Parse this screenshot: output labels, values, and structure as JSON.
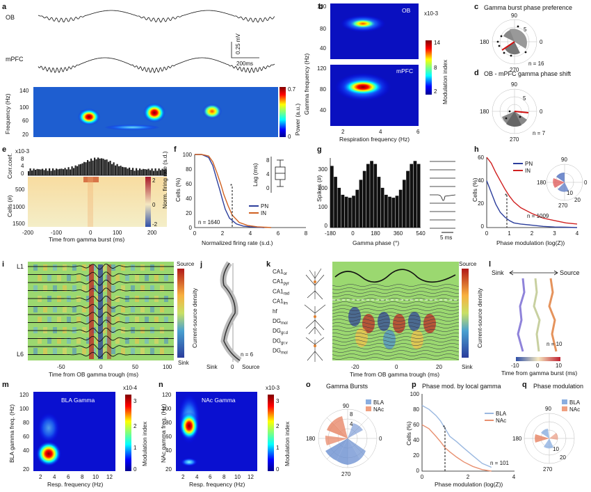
{
  "panels": {
    "a": "a",
    "b": "b",
    "c": "c",
    "d": "d",
    "e": "e",
    "f": "f",
    "g": "g",
    "h": "h",
    "i": "i",
    "j": "j",
    "k": "k",
    "l": "l",
    "m": "m",
    "n": "n",
    "o": "o",
    "p": "p",
    "q": "q"
  },
  "a": {
    "ob": "OB",
    "mpfc": "mPFC",
    "scale_v": "0.25 mV",
    "scale_t": "200ms",
    "ylabel": "Frequency (Hz)",
    "yticks": [
      "140",
      "100",
      "60",
      "20"
    ],
    "cbar": [
      "0.7",
      "0"
    ],
    "cbar_label": "Power (a.u.)"
  },
  "b": {
    "top": "OB",
    "bottom": "mPFC",
    "ylabel": "Gamma frequency (Hz)",
    "yticks_top": [
      "120",
      "80",
      "40"
    ],
    "yticks_bot": [
      "120",
      "80",
      "40"
    ],
    "xticks": [
      "2",
      "4",
      "6"
    ],
    "xlabel": "Respiration frequency (Hz)",
    "cbar_exp": "x10-3",
    "cbar": [
      "14",
      "8",
      "2"
    ],
    "cbar_label": "Modulation index"
  },
  "c": {
    "title": "Gamma burst phase preference",
    "a90": "90",
    "a180": "180",
    "a0": "0",
    "a270": "270",
    "r": "5",
    "n": "n = 16"
  },
  "d": {
    "title": "OB - mPFC gamma phase shift",
    "a90": "90",
    "a180": "180",
    "a0": "0",
    "a270": "270",
    "r": "5",
    "n": "n = 7"
  },
  "e": {
    "exp": "x10-3",
    "ylabel_top": "Corr.coef.",
    "yticks_top": [
      "8",
      "4",
      "0"
    ],
    "ylabel": "Cells (#)",
    "yticks": [
      "500",
      "1000",
      "1500"
    ],
    "xticks": [
      "-200",
      "-100",
      "0",
      "100",
      "200"
    ],
    "xlabel": "Time from gamma burst (ms)",
    "cbar": [
      "2",
      "0",
      "-2"
    ],
    "cbar_label": "Norm. firing rate (s.d.)"
  },
  "f": {
    "ylabel": "Cells (%)",
    "yticks": [
      "100",
      "80",
      "60",
      "40",
      "20",
      "0"
    ],
    "xticks": [
      "0",
      "2",
      "4",
      "6",
      "8"
    ],
    "xlabel": "Normalized firing rate (s.d.)",
    "n": "n = 1640",
    "pn": "PN",
    "in": "IN",
    "star": "*",
    "inset_ylabel": "Lag (ms)",
    "inset_ticks": [
      "8",
      "4",
      "0"
    ]
  },
  "g": {
    "ylabel": "Spikes (#)",
    "yticks": [
      "300",
      "200",
      "100",
      "0"
    ],
    "xticks": [
      "-180",
      "0",
      "180",
      "360",
      "540"
    ],
    "xlabel": "Gamma phase (°)",
    "scale": "5 ms"
  },
  "h": {
    "ylabel": "Cells (%)",
    "yticks": [
      "60",
      "40",
      "20",
      "0"
    ],
    "xticks": [
      "0",
      "1",
      "2",
      "3",
      "4"
    ],
    "xlabel": "Phase modulation (log(Z))",
    "pn": "PN",
    "in": "IN",
    "n": "n = 1009",
    "star": "*",
    "polar": [
      "90",
      "180",
      "0",
      "270",
      "10",
      "20"
    ]
  },
  "i": {
    "top": "L1",
    "bottom": "L6",
    "xticks": [
      "-50",
      "0",
      "50",
      "100"
    ],
    "xlabel": "Time from OB gamma trough (ms)",
    "source": "Source",
    "sink": "Sink",
    "cbar_label": "Current-source density"
  },
  "j": {
    "sink": "Sink",
    "zero": "0",
    "source": "Source",
    "n": "n = 6"
  },
  "k": {
    "layers": [
      {
        "b": "CA1",
        "s": "or"
      },
      {
        "b": "CA1",
        "s": "pyr"
      },
      {
        "b": "CA1",
        "s": "rad"
      },
      {
        "b": "CA1",
        "s": "lm"
      },
      {
        "b": "hf",
        "s": ""
      },
      {
        "b": "DG",
        "s": "mol"
      },
      {
        "b": "DG",
        "s": "gr.d"
      },
      {
        "b": "DG",
        "s": "gr.v"
      },
      {
        "b": "DG",
        "s": "mol"
      }
    ],
    "xticks": [
      "-20",
      "0",
      "20"
    ],
    "xlabel": "Time from OB gamma trough (ms)",
    "source": "Source",
    "sink": "Sink",
    "cbar_label": "Current-source density"
  },
  "l": {
    "sink": "Sink",
    "source": "Source",
    "n": "n = 10",
    "xticks": [
      "-10",
      "0",
      "10"
    ],
    "xlabel": "Time from gamma burst (ms)"
  },
  "m": {
    "title": "BLA Gamma",
    "ylabel": "BLA gamma freq. (Hz)",
    "yticks": [
      "120",
      "100",
      "80",
      "60",
      "40",
      "20"
    ],
    "xticks": [
      "2",
      "4",
      "6",
      "8",
      "10",
      "12"
    ],
    "xlabel": "Resp. frequency (Hz)",
    "cbar_exp": "x10-4",
    "cbar": [
      "3",
      "2",
      "1",
      "0"
    ],
    "cbar_label": "Modulation index"
  },
  "n": {
    "title": "NAc Gamma",
    "ylabel": "NAc gamma freq. (Hz)",
    "yticks": [
      "120",
      "100",
      "80",
      "60",
      "40",
      "20"
    ],
    "xticks": [
      "2",
      "4",
      "6",
      "8",
      "10",
      "12"
    ],
    "xlabel": "Resp. frequency (Hz)",
    "cbar_exp": "x10-3",
    "cbar": [
      "3",
      "2",
      "1",
      "0"
    ],
    "cbar_label": "Modulation index"
  },
  "o": {
    "title": "Gamma Bursts",
    "bla": "BLA",
    "nac": "NAc",
    "a90": "90",
    "a180": "180",
    "a0": "0",
    "a270": "270",
    "r1": "4",
    "r2": "8"
  },
  "p": {
    "title": "Phase mod. by local gamma",
    "ylabel": "Cells (%)",
    "yticks": [
      "100",
      "80",
      "60",
      "40",
      "20",
      "0"
    ],
    "xticks": [
      "0",
      "2",
      "4"
    ],
    "xlabel": "Phase modulation (log(Z))",
    "bla": "BLA",
    "nac": "NAc",
    "n": "n = 101",
    "star": "*"
  },
  "q": {
    "title": "Phase modulation",
    "bla": "BLA",
    "nac": "NAc",
    "a90": "90",
    "a180": "180",
    "a270": "270",
    "r1": "10",
    "r2": "20"
  },
  "chart_data": [
    {
      "panel": "f",
      "type": "line",
      "title": "",
      "xlabel": "Normalized firing rate (s.d.)",
      "ylabel": "Cells (%)",
      "xlim": [
        0,
        8
      ],
      "ylim": [
        0,
        100
      ],
      "series": [
        {
          "name": "PN",
          "x": [
            0,
            0.5,
            1,
            1.3,
            1.6,
            1.8,
            2,
            2.2,
            2.5,
            3,
            3.5,
            4,
            5
          ],
          "y": [
            100,
            100,
            96,
            85,
            65,
            52,
            38,
            25,
            13,
            5,
            2,
            1,
            0
          ]
        },
        {
          "name": "IN",
          "x": [
            0,
            0.5,
            1,
            1.3,
            1.6,
            1.9,
            2.1,
            2.4,
            2.7,
            3.2,
            3.8,
            4.5,
            5.5
          ],
          "y": [
            100,
            100,
            98,
            90,
            75,
            58,
            45,
            30,
            17,
            7,
            3,
            1,
            0
          ]
        }
      ]
    },
    {
      "panel": "g",
      "type": "bar",
      "title": "",
      "xlabel": "Gamma phase (°)",
      "ylabel": "Spikes (#)",
      "xlim": [
        -180,
        540
      ],
      "ylim": [
        0,
        350
      ],
      "x": [
        -180,
        -150,
        -120,
        -90,
        -60,
        -30,
        0,
        30,
        60,
        90,
        120,
        150,
        180,
        210,
        240,
        270,
        300,
        330,
        360,
        390,
        420,
        450,
        480,
        510,
        540
      ],
      "values": [
        310,
        255,
        200,
        165,
        155,
        150,
        160,
        190,
        240,
        285,
        320,
        335,
        320,
        255,
        200,
        165,
        155,
        150,
        160,
        190,
        240,
        285,
        320,
        335,
        320
      ]
    },
    {
      "panel": "h",
      "type": "line",
      "title": "",
      "xlabel": "Phase modulation (log(Z))",
      "ylabel": "Cells (%)",
      "xlim": [
        0,
        4
      ],
      "ylim": [
        0,
        60
      ],
      "series": [
        {
          "name": "PN",
          "x": [
            0,
            0.2,
            0.4,
            0.6,
            0.8,
            1,
            1.2,
            1.5,
            2,
            2.5,
            3,
            3.5,
            4
          ],
          "y": [
            40,
            30,
            20,
            13,
            9,
            6,
            4,
            3,
            2,
            1,
            0.5,
            0.3,
            0
          ]
        },
        {
          "name": "IN",
          "x": [
            0,
            0.2,
            0.4,
            0.6,
            0.8,
            1,
            1.2,
            1.5,
            2,
            2.5,
            3,
            3.5,
            4
          ],
          "y": [
            60,
            55,
            47,
            40,
            33,
            27,
            22,
            17,
            12,
            8,
            6,
            4,
            3
          ]
        }
      ]
    },
    {
      "panel": "p",
      "type": "line",
      "title": "Phase mod. by local gamma",
      "xlabel": "Phase modulation (log(Z))",
      "ylabel": "Cells (%)",
      "xlim": [
        0,
        4
      ],
      "ylim": [
        0,
        100
      ],
      "series": [
        {
          "name": "BLA",
          "x": [
            0,
            0.3,
            0.6,
            0.8,
            1,
            1.2,
            1.5,
            1.8,
            2.2,
            2.6,
            3
          ],
          "y": [
            85,
            80,
            72,
            65,
            55,
            45,
            38,
            30,
            20,
            10,
            5
          ]
        },
        {
          "name": "NAc",
          "x": [
            0,
            0.3,
            0.6,
            0.8,
            1,
            1.2,
            1.5,
            1.8,
            2.2,
            2.6,
            3
          ],
          "y": [
            60,
            55,
            45,
            38,
            30,
            25,
            18,
            12,
            6,
            2,
            0
          ]
        }
      ]
    }
  ]
}
